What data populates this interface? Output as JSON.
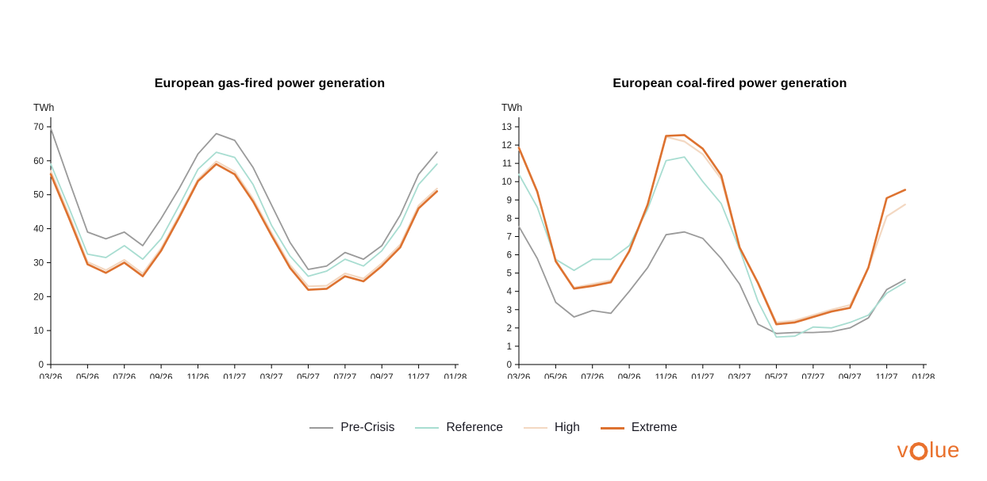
{
  "chart_data": [
    {
      "type": "line",
      "title": "European gas-fired power generation",
      "y_axis": {
        "unit": "TWh",
        "min": 0,
        "max": 70,
        "step": 10
      },
      "x_tick_labels": [
        "03/26",
        "05/26",
        "07/26",
        "09/26",
        "11/26",
        "01/27",
        "03/27",
        "05/27",
        "07/27",
        "09/27",
        "11/27",
        "01/28"
      ],
      "x_axis_slots": 22,
      "categories": [
        "03/26",
        "04/26",
        "05/26",
        "06/26",
        "07/26",
        "08/26",
        "09/26",
        "10/26",
        "11/26",
        "12/26",
        "01/27",
        "02/27",
        "03/27",
        "04/27",
        "05/27",
        "06/27",
        "07/27",
        "08/27",
        "09/27",
        "10/27",
        "11/27",
        "12/27"
      ],
      "series": [
        {
          "name": "Pre-Crisis",
          "color": "#9a9a9a",
          "values": [
            69.5,
            54,
            39,
            37,
            39,
            35,
            43,
            52,
            62,
            68,
            66,
            58,
            47,
            36,
            28,
            29,
            33,
            31,
            35,
            44,
            56,
            62.5
          ]
        },
        {
          "name": "Reference",
          "color": "#a8ddd1",
          "values": [
            59,
            46,
            32.5,
            31.5,
            35,
            31,
            37,
            47,
            57.5,
            62.5,
            61,
            53,
            41,
            32,
            26,
            27.5,
            31,
            29,
            33.5,
            41,
            53,
            59
          ]
        },
        {
          "name": "High",
          "color": "#f3d8c2",
          "values": [
            57,
            44,
            30.2,
            27.8,
            30.8,
            26.8,
            34.2,
            44.2,
            54.5,
            59.8,
            56.8,
            48.8,
            38.8,
            29.3,
            23,
            23.2,
            26.8,
            25.3,
            29.8,
            35.3,
            46.8,
            51.8
          ]
        },
        {
          "name": "Extreme",
          "color": "#dd7230",
          "values": [
            56,
            43,
            29.5,
            27,
            30,
            26,
            33.5,
            43.5,
            54,
            59,
            56,
            48,
            38,
            28.5,
            22,
            22.3,
            26,
            24.5,
            29,
            34.5,
            46,
            51
          ]
        }
      ]
    },
    {
      "type": "line",
      "title": "European coal-fired power generation",
      "y_axis": {
        "unit": "TWh",
        "min": 0,
        "max": 13,
        "step": 1
      },
      "x_tick_labels": [
        "03/26",
        "05/26",
        "07/26",
        "09/26",
        "11/26",
        "01/27",
        "03/27",
        "05/27",
        "07/27",
        "09/27",
        "11/27",
        "01/28"
      ],
      "x_axis_slots": 22,
      "categories": [
        "03/26",
        "04/26",
        "05/26",
        "06/26",
        "07/26",
        "08/26",
        "09/26",
        "10/26",
        "11/26",
        "12/26",
        "01/27",
        "02/27",
        "03/27",
        "04/27",
        "05/27",
        "06/27",
        "07/27",
        "08/27",
        "09/27",
        "10/27",
        "11/27",
        "12/27"
      ],
      "series": [
        {
          "name": "Pre-Crisis",
          "color": "#9a9a9a",
          "values": [
            7.55,
            5.8,
            3.4,
            2.6,
            2.95,
            2.8,
            4.0,
            5.3,
            7.1,
            7.25,
            6.9,
            5.8,
            4.4,
            2.2,
            1.7,
            1.75,
            1.75,
            1.8,
            2.0,
            2.55,
            4.1,
            4.65
          ]
        },
        {
          "name": "Reference",
          "color": "#a8ddd1",
          "values": [
            10.4,
            8.6,
            5.75,
            5.15,
            5.75,
            5.75,
            6.5,
            8.5,
            11.15,
            11.35,
            10.0,
            8.8,
            6.3,
            3.45,
            1.5,
            1.55,
            2.05,
            2.0,
            2.3,
            2.7,
            3.9,
            4.5
          ]
        },
        {
          "name": "High",
          "color": "#f3d8c2",
          "values": [
            11.8,
            9.4,
            5.7,
            4.2,
            4.4,
            4.6,
            6.15,
            8.7,
            12.45,
            12.2,
            11.5,
            10.15,
            6.4,
            4.5,
            2.3,
            2.4,
            2.7,
            3.0,
            3.25,
            5.3,
            8.1,
            8.75
          ]
        },
        {
          "name": "Extreme",
          "color": "#dd7230",
          "values": [
            11.85,
            9.45,
            5.65,
            4.15,
            4.3,
            4.5,
            6.2,
            8.75,
            12.5,
            12.55,
            11.8,
            10.35,
            6.4,
            4.45,
            2.2,
            2.3,
            2.6,
            2.9,
            3.1,
            5.3,
            9.1,
            9.55
          ]
        }
      ]
    }
  ],
  "legend": {
    "items": [
      {
        "label": "Pre-Crisis",
        "color": "#9a9a9a"
      },
      {
        "label": "Reference",
        "color": "#a8ddd1"
      },
      {
        "label": "High",
        "color": "#f3d8c2"
      },
      {
        "label": "Extreme",
        "color": "#dd7230"
      }
    ]
  },
  "logo": {
    "full_name": "volue",
    "prefix": "v",
    "suffix": "lue",
    "color": "#e9712d"
  }
}
